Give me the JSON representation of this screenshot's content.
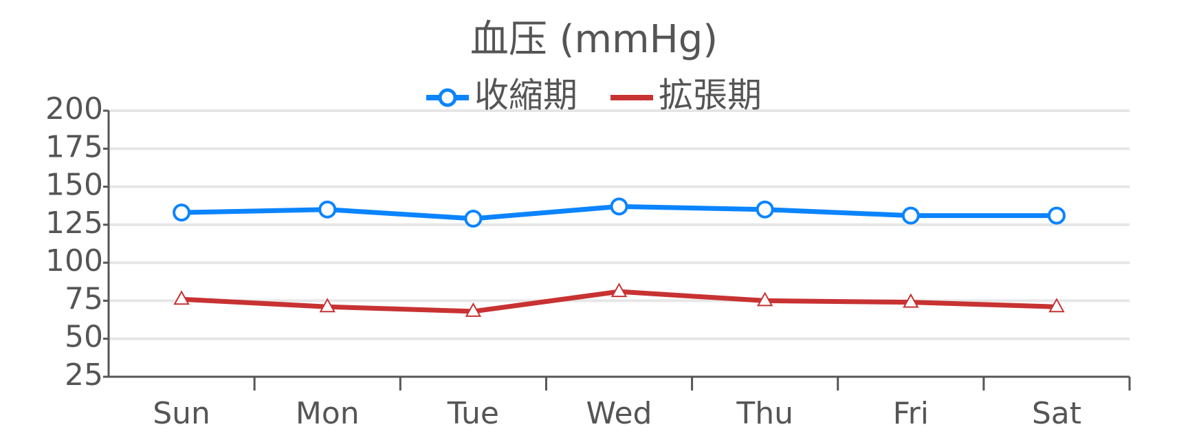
{
  "chart_data": {
    "type": "line",
    "title": "血压 (mmHg)",
    "categories": [
      "Sun",
      "Mon",
      "Tue",
      "Wed",
      "Thu",
      "Fri",
      "Sat"
    ],
    "series": [
      {
        "name": "收縮期",
        "color": "#0a84ff",
        "marker": "circle",
        "values": [
          133,
          135,
          129,
          137,
          135,
          131,
          131
        ]
      },
      {
        "name": "拡張期",
        "color": "#c83232",
        "marker": "triangle",
        "values": [
          76,
          71,
          68,
          81,
          75,
          74,
          71
        ]
      }
    ],
    "ylim": [
      25,
      200
    ],
    "yticks": [
      25,
      50,
      75,
      100,
      125,
      150,
      175,
      200
    ],
    "grid": true,
    "legend": "top"
  }
}
